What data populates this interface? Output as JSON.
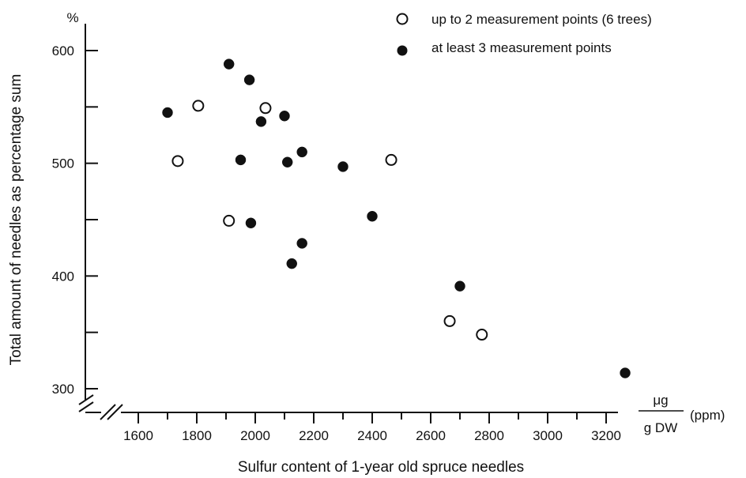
{
  "chart_data": {
    "type": "scatter",
    "title": "",
    "xlabel": "Sulfur content of 1-year old spruce needles",
    "ylabel": "Total amount of needles as percentage sum",
    "y_unit": "%",
    "x_unit_numerator": "μg",
    "x_unit_denominator": "g DW",
    "x_unit_suffix": "(ppm)",
    "xlim": [
      1600,
      3200
    ],
    "ylim": [
      300,
      600
    ],
    "x_ticks": [
      1600,
      1800,
      2000,
      2200,
      2400,
      2600,
      2800,
      3000,
      3200
    ],
    "y_ticks": [
      300,
      400,
      500,
      600
    ],
    "x_tick_labels": [
      "1600",
      "1800",
      "2000",
      "2200",
      "2400",
      "2600",
      "2800",
      "3000",
      "3200"
    ],
    "y_tick_labels": [
      "300",
      "400",
      "500",
      "600"
    ],
    "axis_breaks": true,
    "grid": false,
    "legend_position": "top-right",
    "series": [
      {
        "name": "up to 2 measurement points (6 trees)",
        "marker": "open-circle",
        "points": [
          {
            "x": 1735,
            "y": 502
          },
          {
            "x": 1805,
            "y": 551
          },
          {
            "x": 1910,
            "y": 449
          },
          {
            "x": 2035,
            "y": 549
          },
          {
            "x": 2465,
            "y": 503
          },
          {
            "x": 2665,
            "y": 360
          },
          {
            "x": 2775,
            "y": 348
          }
        ]
      },
      {
        "name": "at least 3 measurement points",
        "marker": "filled-circle",
        "points": [
          {
            "x": 1700,
            "y": 545
          },
          {
            "x": 1910,
            "y": 588
          },
          {
            "x": 1950,
            "y": 503
          },
          {
            "x": 1980,
            "y": 574
          },
          {
            "x": 1985,
            "y": 447
          },
          {
            "x": 2020,
            "y": 537
          },
          {
            "x": 2100,
            "y": 542
          },
          {
            "x": 2110,
            "y": 501
          },
          {
            "x": 2125,
            "y": 411
          },
          {
            "x": 2160,
            "y": 510
          },
          {
            "x": 2160,
            "y": 429
          },
          {
            "x": 2300,
            "y": 497
          },
          {
            "x": 2400,
            "y": 453
          },
          {
            "x": 2700,
            "y": 391
          },
          {
            "x": 3265,
            "y": 314
          }
        ]
      }
    ]
  }
}
